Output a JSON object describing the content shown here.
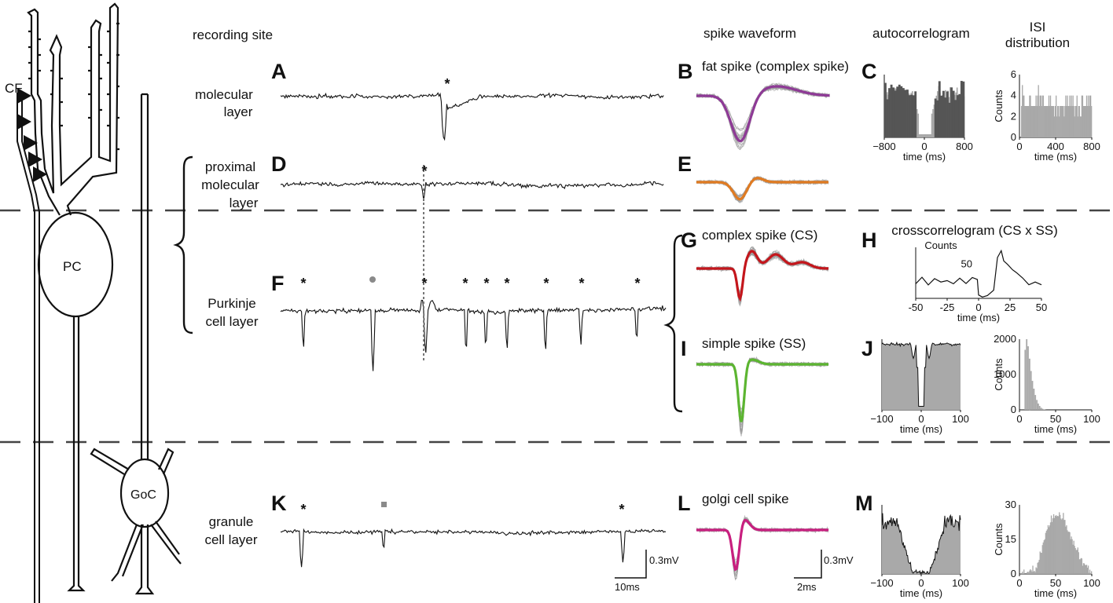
{
  "headers": {
    "recording_site": "recording site",
    "spike_waveform": "spike waveform",
    "autocorrelogram": "autocorrelogram",
    "isi_line1": "ISI",
    "isi_line2": "distribution"
  },
  "layers": {
    "molecular": [
      "molecular",
      "layer"
    ],
    "proximal": [
      "proximal",
      "molecular",
      "layer"
    ],
    "purkinje": [
      "Purkinje",
      "cell layer"
    ],
    "granule": [
      "granule",
      "cell layer"
    ]
  },
  "cells": {
    "cf": "CF",
    "pc": "PC",
    "goc": "GoC"
  },
  "panels": [
    "A",
    "B",
    "C",
    "D",
    "E",
    "F",
    "G",
    "H",
    "I",
    "J",
    "K",
    "L",
    "M"
  ],
  "waveform_titles": {
    "B": "fat spike (complex spike)",
    "G": "complex spike (CS)",
    "I": "simple spike (SS)",
    "L": "golgi cell spike"
  },
  "colors": {
    "purple": "#8e3a96",
    "orange": "#e07b22",
    "red": "#c4161c",
    "green": "#5cb531",
    "magenta": "#c81f7f",
    "gray_marker": "#8a8a8a",
    "hist_fill": "#a9a9a9",
    "hist_dark": "#555555",
    "trace": "#111111"
  },
  "markers": {
    "star": "*",
    "A_markers": [
      "purple-star"
    ],
    "D_markers": [
      "orange-star"
    ],
    "F_markers": [
      "green-star",
      "gray-dot",
      "red-star",
      "green-star",
      "green-star",
      "green-star",
      "green-star",
      "green-star",
      "green-star"
    ],
    "K_markers": [
      "magenta-star",
      "gray-square",
      "magenta-star"
    ]
  },
  "scalebars": {
    "trace_time": "10ms",
    "trace_volt": "0.3mV",
    "wave_time": "2ms",
    "wave_volt": "0.3mV"
  },
  "chart_data": [
    {
      "panel": "C",
      "type": "bar",
      "title": "autocorrelogram",
      "xlabel": "time (ms)",
      "ylabel": "",
      "xlim": [
        -800,
        800
      ],
      "xticks": [
        "−800",
        "0",
        "800"
      ],
      "description_values": "flat high counts on both sides, gap around 0"
    },
    {
      "panel": "C-ISI",
      "type": "bar",
      "title": "ISI distribution",
      "xlabel": "time (ms)",
      "ylabel": "Counts",
      "xlim": [
        0,
        800
      ],
      "ylim": [
        0,
        6
      ],
      "xticks": [
        "0",
        "400",
        "800"
      ],
      "yticks": [
        "0",
        "2",
        "4",
        "6"
      ],
      "baseline_counts": 3,
      "peak_counts": 5
    },
    {
      "panel": "H",
      "type": "line",
      "title": "crosscorrelogram (CS x SS)",
      "xlabel": "time (ms)",
      "ylabel": "Counts",
      "xlim": [
        -50,
        50
      ],
      "ylim": [
        0,
        75
      ],
      "xticks": [
        "-50",
        "-25",
        "0",
        "25",
        "50"
      ],
      "yticks": [
        "50"
      ],
      "x": [
        -50,
        -45,
        -40,
        -35,
        -30,
        -25,
        -20,
        -15,
        -10,
        -5,
        -1,
        0,
        3,
        7,
        12,
        15,
        18,
        20,
        23,
        27,
        30,
        35,
        40,
        45,
        50
      ],
      "y": [
        22,
        28,
        20,
        30,
        24,
        27,
        22,
        29,
        23,
        30,
        26,
        5,
        2,
        4,
        12,
        60,
        70,
        55,
        50,
        42,
        38,
        30,
        20,
        24,
        20
      ]
    },
    {
      "panel": "J",
      "type": "area",
      "title": "autocorrelogram",
      "xlabel": "time (ms)",
      "ylabel": "",
      "xlim": [
        -100,
        100
      ],
      "xticks": [
        "−100",
        "0",
        "100"
      ]
    },
    {
      "panel": "J-ISI",
      "type": "bar",
      "title": "ISI distribution",
      "xlabel": "time (ms)",
      "ylabel": "Counts",
      "xlim": [
        0,
        100
      ],
      "ylim": [
        0,
        2000
      ],
      "xticks": [
        "0",
        "50",
        "100"
      ],
      "yticks": [
        "0",
        "1000",
        "2000"
      ],
      "x": [
        5,
        7,
        9,
        11,
        13,
        15,
        17,
        19,
        21,
        23,
        25,
        27,
        29,
        31,
        33,
        35
      ],
      "y": [
        0,
        1700,
        2000,
        1800,
        1450,
        1100,
        820,
        600,
        420,
        280,
        180,
        110,
        60,
        30,
        12,
        4
      ]
    },
    {
      "panel": "M",
      "type": "area",
      "title": "autocorrelogram",
      "xlabel": "time (ms)",
      "ylabel": "",
      "xlim": [
        -100,
        100
      ],
      "xticks": [
        "−100",
        "0",
        "100"
      ]
    },
    {
      "panel": "M-ISI",
      "type": "bar",
      "title": "ISI distribution",
      "xlabel": "time (ms)",
      "ylabel": "Counts",
      "xlim": [
        0,
        100
      ],
      "ylim": [
        0,
        30
      ],
      "xticks": [
        "0",
        "50",
        "100"
      ],
      "yticks": [
        "0",
        "15",
        "30"
      ],
      "x": [
        10,
        15,
        20,
        25,
        30,
        35,
        40,
        45,
        50,
        55,
        60,
        65,
        70,
        75,
        80,
        85,
        90,
        95,
        100
      ],
      "y": [
        0,
        1,
        2,
        5,
        10,
        17,
        22,
        25,
        26,
        25,
        24,
        20,
        16,
        12,
        9,
        6,
        4,
        2,
        1
      ]
    }
  ]
}
